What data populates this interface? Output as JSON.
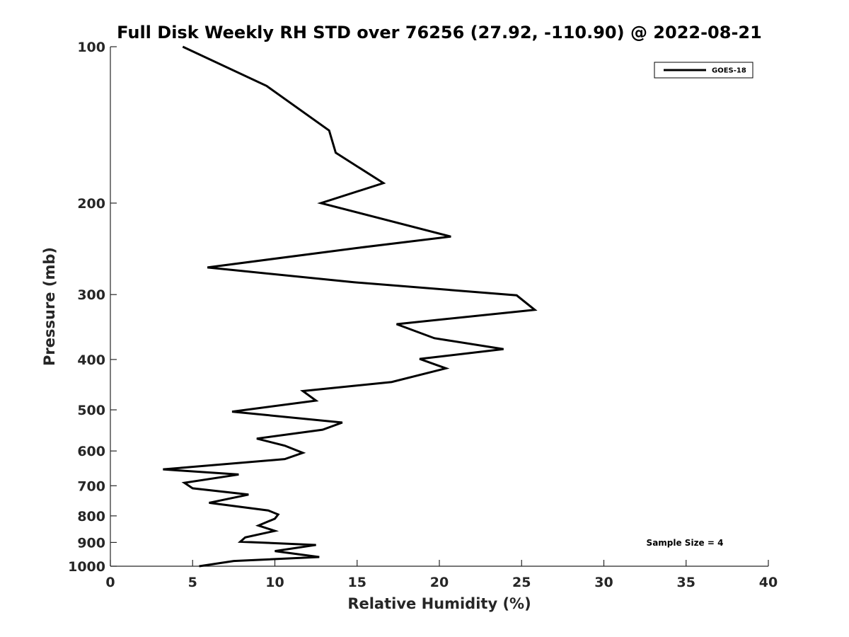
{
  "chart_data": {
    "type": "line",
    "title": "Full Disk Weekly RH STD over 76256 (27.92, -110.90) @ 2022-08-21",
    "xlabel": "Relative Humidity (%)",
    "ylabel": "Pressure (mb)",
    "xlim": [
      0,
      40
    ],
    "ylim": [
      100,
      1000
    ],
    "yscale": "log",
    "y_reversed": true,
    "xticks": [
      0,
      5,
      10,
      15,
      20,
      25,
      30,
      35,
      40
    ],
    "yticks": [
      100,
      200,
      300,
      400,
      500,
      600,
      700,
      800,
      900,
      1000
    ],
    "grid": false,
    "legend_position": "top-right",
    "annotation": "Sample Size = 4",
    "series": [
      {
        "name": "GOES-18",
        "color": "#000000",
        "x": [
          4.4,
          9.5,
          13.3,
          13.7,
          16.6,
          12.8,
          20.7,
          15.0,
          5.9,
          14.8,
          24.7,
          25.8,
          17.4,
          19.7,
          23.9,
          18.8,
          20.4,
          17.1,
          11.7,
          12.5,
          7.4,
          14.1,
          12.9,
          8.9,
          10.6,
          11.7,
          10.6,
          3.2,
          7.8,
          4.5,
          5.0,
          8.4,
          6.0,
          9.6,
          10.2,
          10.0,
          9.0,
          10.0,
          8.2,
          7.9,
          12.5,
          10.0,
          12.7,
          7.5,
          5.4
        ],
        "y": [
          100,
          119,
          145,
          160,
          183,
          200,
          232,
          244,
          266,
          284,
          301,
          321,
          342,
          364,
          382,
          399,
          416,
          442,
          460,
          480,
          504,
          529,
          546,
          568,
          586,
          605,
          622,
          651,
          666,
          691,
          708,
          728,
          755,
          781,
          795,
          810,
          835,
          855,
          880,
          897,
          910,
          935,
          960,
          977,
          1000
        ]
      }
    ]
  }
}
